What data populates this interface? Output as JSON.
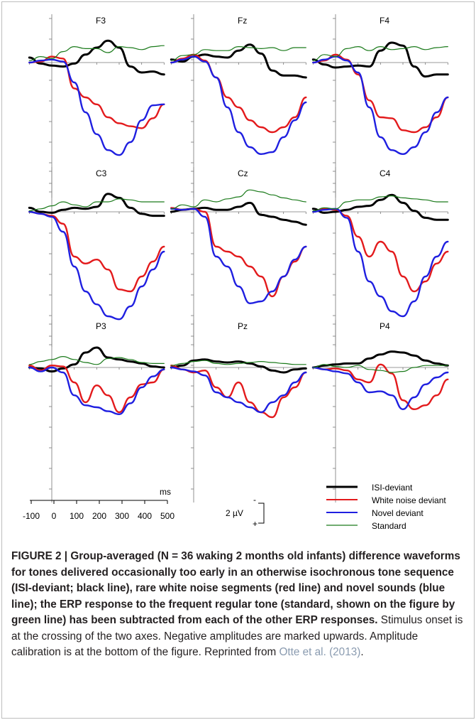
{
  "figure": {
    "x_unit_label": "ms",
    "x_ticks": [
      "-100",
      "0",
      "100",
      "200",
      "300",
      "400",
      "500"
    ],
    "amp_label": "2 µV",
    "amp_minus": "-",
    "amp_plus": "+",
    "legend": [
      {
        "label": "ISI-deviant",
        "color": "#000000"
      },
      {
        "label": "White noise deviant",
        "color": "#e31a1c"
      },
      {
        "label": "Novel deviant",
        "color": "#1f1fe0"
      },
      {
        "label": "Standard",
        "color": "#1a7a1a"
      }
    ]
  },
  "caption": {
    "title": "FIGURE 2 | Group-averaged (N = 36 waking 2 months old infants) difference waveforms for tones delivered occasionally too early in an otherwise isochronous tone sequence (ISI-deviant; black line), rare white noise segments (red line) and novel sounds (blue line); the ERP response to the frequent regular tone (standard, shown on the figure by green line) has been subtracted from each of the other ERP responses.",
    "body": " Stimulus onset is at the crossing of the two axes. Negative amplitudes are marked upwards. Amplitude calibration is at the bottom of the figure. Reprinted from ",
    "ref": "Otte et al. (2013)",
    "end": "."
  },
  "chart_data": {
    "type": "line",
    "x_unit": "ms",
    "x_range": [
      -100,
      500
    ],
    "amplitude_unit": "µV",
    "negative_up": true,
    "series_names": [
      "ISI-deviant",
      "White noise deviant",
      "Novel deviant",
      "Standard"
    ],
    "x": [
      -100,
      -50,
      0,
      50,
      100,
      150,
      200,
      250,
      300,
      350,
      400,
      450,
      500
    ],
    "panels": [
      {
        "label": "F3",
        "series": [
          {
            "name": "ISI-deviant",
            "values": [
              -0.5,
              0.1,
              0.3,
              0.4,
              0.1,
              -0.8,
              -1.5,
              -2.2,
              -1.5,
              0.4,
              1.0,
              0.9,
              1.2
            ]
          },
          {
            "name": "White noise deviant",
            "values": [
              0,
              -0.1,
              -0.6,
              -0.4,
              2.6,
              3.5,
              4.2,
              5.5,
              6.1,
              6.4,
              6.6,
              5.6,
              4.2
            ]
          },
          {
            "name": "Novel deviant",
            "values": [
              0,
              -0.2,
              -0.3,
              -0.1,
              2.0,
              5.0,
              7.2,
              8.8,
              9.3,
              8.0,
              5.8,
              4.3,
              4.2
            ]
          },
          {
            "name": "Standard",
            "values": [
              -0.2,
              -0.6,
              -0.4,
              -1.1,
              -1.6,
              -1.4,
              -1.4,
              -1.0,
              -1.6,
              -1.5,
              -1.3,
              -1.6,
              -1.7
            ]
          }
        ]
      },
      {
        "label": "Fz",
        "series": [
          {
            "name": "ISI-deviant",
            "values": [
              -0.3,
              -0.1,
              -0.6,
              -0.8,
              -0.6,
              -0.5,
              -1.2,
              -1.8,
              -0.9,
              0.8,
              1.3,
              1.3,
              1.5
            ]
          },
          {
            "name": "White noise deviant",
            "values": [
              0,
              -0.4,
              -0.8,
              -0.2,
              1.5,
              3.5,
              4.5,
              5.8,
              6.5,
              7.0,
              6.5,
              5.5,
              3.5
            ]
          },
          {
            "name": "Novel deviant",
            "values": [
              0,
              -0.3,
              -0.6,
              -0.1,
              1.5,
              4.5,
              7.0,
              8.5,
              9.2,
              9.0,
              7.5,
              5.8,
              4.0
            ]
          },
          {
            "name": "Standard",
            "values": [
              -0.2,
              -0.7,
              -0.8,
              -1.3,
              -1.2,
              -1.2,
              -1.6,
              -1.5,
              -1.4,
              -1.5,
              -1.2,
              -1.5,
              -1.5
            ]
          }
        ]
      },
      {
        "label": "F4",
        "series": [
          {
            "name": "ISI-deviant",
            "values": [
              -0.3,
              0.2,
              0.5,
              0.4,
              0.3,
              0.4,
              -1.2,
              -2.0,
              -1.7,
              0.4,
              1.4,
              1.2,
              1.2
            ]
          },
          {
            "name": "White noise deviant",
            "values": [
              0,
              -0.2,
              -0.8,
              -0.3,
              1.2,
              3.8,
              5.5,
              5.6,
              6.8,
              7.0,
              6.5,
              5.5,
              3.5
            ]
          },
          {
            "name": "Novel deviant",
            "values": [
              0,
              -0.3,
              -0.6,
              -0.2,
              1.0,
              4.5,
              7.5,
              8.8,
              9.2,
              8.5,
              7.0,
              5.0,
              3.5
            ]
          },
          {
            "name": "Standard",
            "values": [
              -0.2,
              -0.8,
              -0.6,
              -1.4,
              -1.6,
              -1.2,
              -1.6,
              -1.3,
              -1.4,
              -1.6,
              -1.3,
              -1.5,
              -1.6
            ]
          }
        ]
      },
      {
        "label": "C3",
        "series": [
          {
            "name": "ISI-deviant",
            "values": [
              -0.4,
              0,
              0.1,
              -0.2,
              -0.4,
              -0.3,
              -0.5,
              -1.8,
              -1.4,
              -0.4,
              0.2,
              0.4,
              0.4
            ]
          },
          {
            "name": "White noise deviant",
            "values": [
              0,
              0.2,
              0.4,
              1.2,
              4.5,
              5.2,
              4.8,
              5.8,
              7.8,
              8.0,
              6.5,
              5.0,
              3.5
            ]
          },
          {
            "name": "Novel deviant",
            "values": [
              0,
              0.2,
              0.5,
              2.0,
              5.5,
              8.0,
              9.3,
              10.5,
              10.8,
              9.5,
              7.5,
              5.8,
              4.0
            ]
          },
          {
            "name": "Standard",
            "values": [
              -0.1,
              -0.3,
              -0.6,
              -1.0,
              -0.7,
              -0.5,
              -1.0,
              -1.0,
              -1.3,
              -1.2,
              -1.0,
              -1.0,
              -1.0
            ]
          }
        ]
      },
      {
        "label": "Cz",
        "series": [
          {
            "name": "ISI-deviant",
            "values": [
              0,
              -0.2,
              -0.3,
              -0.4,
              -0.2,
              -0.2,
              -0.5,
              -0.9,
              0.3,
              0.5,
              0.8,
              1.0,
              1.3
            ]
          },
          {
            "name": "White noise deviant",
            "values": [
              -0.4,
              -0.2,
              -0.3,
              0,
              3.5,
              4.0,
              4.5,
              5.5,
              6.5,
              8.5,
              6.5,
              5.0,
              3.5
            ]
          },
          {
            "name": "Novel deviant",
            "values": [
              -0.3,
              -0.2,
              -0.3,
              0.5,
              4.5,
              5.5,
              7.5,
              9.2,
              9.0,
              8.0,
              6.5,
              4.8,
              3.5
            ]
          },
          {
            "name": "Standard",
            "values": [
              -0.3,
              -0.7,
              -0.5,
              -1.2,
              -1.0,
              -1.3,
              -1.5,
              -2.2,
              -2.0,
              -1.7,
              -1.4,
              -1.2,
              -1.0
            ]
          }
        ]
      },
      {
        "label": "C4",
        "series": [
          {
            "name": "ISI-deviant",
            "values": [
              -0.3,
              0.1,
              0,
              -0.2,
              -0.5,
              -0.6,
              -1.2,
              -1.7,
              -0.9,
              -0.1,
              0.6,
              0.8,
              0.8
            ]
          },
          {
            "name": "White noise deviant",
            "values": [
              0,
              -0.3,
              -0.2,
              0.4,
              2.5,
              4.5,
              3.0,
              4.0,
              6.5,
              8.0,
              7.0,
              5.2,
              4.0
            ]
          },
          {
            "name": "Novel deviant",
            "values": [
              0,
              -0.2,
              -0.3,
              0.6,
              4.0,
              7.0,
              8.5,
              10.0,
              10.5,
              9.0,
              6.5,
              4.5,
              3.0
            ]
          },
          {
            "name": "Standard",
            "values": [
              -0.1,
              -0.4,
              -0.3,
              -1.0,
              -1.2,
              -1.2,
              -1.5,
              -1.6,
              -1.4,
              -1.3,
              -1.2,
              -1.0,
              -1.0
            ]
          }
        ]
      },
      {
        "label": "P3",
        "series": [
          {
            "name": "ISI-deviant",
            "values": [
              0,
              0.1,
              0.4,
              0.1,
              -0.3,
              -1.5,
              -2.0,
              -1.0,
              -0.8,
              -0.6,
              -0.4,
              -0.1,
              0
            ]
          },
          {
            "name": "White noise deviant",
            "values": [
              -0.2,
              0.3,
              -0.2,
              -0.1,
              1.5,
              3.5,
              1.8,
              2.8,
              4.5,
              3.0,
              1.7,
              1.5,
              0.2
            ]
          },
          {
            "name": "Novel deviant",
            "values": [
              0,
              0.4,
              0,
              0.5,
              2.8,
              3.8,
              4.0,
              4.4,
              4.7,
              3.6,
              2.0,
              0.9,
              0.2
            ]
          },
          {
            "name": "Standard",
            "values": [
              -0.3,
              -0.6,
              -0.8,
              -1.1,
              -0.8,
              -0.5,
              -0.3,
              -0.9,
              -1.0,
              -0.8,
              -0.5,
              -0.4,
              -0.4
            ]
          }
        ]
      },
      {
        "label": "Pz",
        "series": [
          {
            "name": "ISI-deviant",
            "values": [
              0,
              -0.2,
              -0.7,
              -0.8,
              -0.6,
              -0.5,
              -0.6,
              -0.4,
              -0.1,
              0.3,
              0.5,
              0.2,
              0.1
            ]
          },
          {
            "name": "White noise deviant",
            "values": [
              -0.2,
              0.2,
              0.5,
              0.3,
              2.0,
              3.0,
              1.5,
              3.5,
              4.5,
              5.0,
              3.0,
              2.0,
              0.5
            ]
          },
          {
            "name": "Novel deviant",
            "values": [
              0,
              0.2,
              0.4,
              0.8,
              2.5,
              3.0,
              3.5,
              4.0,
              4.5,
              3.5,
              2.8,
              1.5,
              0.5
            ]
          },
          {
            "name": "Standard",
            "values": [
              -0.2,
              -0.4,
              -0.6,
              -0.7,
              -0.4,
              -0.3,
              -0.4,
              -0.5,
              -0.6,
              -0.5,
              -0.4,
              -0.3,
              -0.3
            ]
          }
        ]
      },
      {
        "label": "P4",
        "series": [
          {
            "name": "ISI-deviant",
            "values": [
              0,
              -0.2,
              -0.3,
              -0.4,
              -0.4,
              -0.9,
              -1.3,
              -1.6,
              -1.5,
              -1.2,
              -0.7,
              -0.4,
              -0.2
            ]
          },
          {
            "name": "White noise deviant",
            "values": [
              0,
              0.2,
              0.1,
              0.3,
              1.2,
              1.5,
              -0.3,
              0.6,
              3.3,
              4.2,
              3.8,
              2.8,
              1.2
            ]
          },
          {
            "name": "Novel deviant",
            "values": [
              0,
              0.2,
              0.4,
              0.6,
              1.5,
              2.5,
              2.4,
              2.8,
              4.2,
              3.0,
              1.7,
              1.0,
              0.5
            ]
          },
          {
            "name": "Standard",
            "values": [
              0,
              -0.3,
              -0.1,
              0,
              -0.2,
              0.2,
              0.3,
              0.5,
              0.4,
              0,
              -0.2,
              -0.2,
              -0.2
            ]
          }
        ]
      }
    ]
  }
}
